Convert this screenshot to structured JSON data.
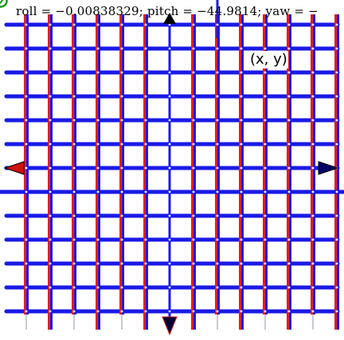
{
  "readout": {
    "text": "roll = −0.00838329; pitch = −44.9814; yaw = −"
  },
  "point_label": {
    "text": "(x, y)"
  },
  "colors": {
    "horizontal_lines": "#1a1ae6",
    "vertical_line_left": "#e02020",
    "vertical_line_right": "#1a1ae6",
    "axis": "#0000cc",
    "arrow_left": "#d01010",
    "arrow_right": "#000066",
    "arrow_dark": "#000000",
    "corner_icon": "#1a9a1a",
    "background": "#ffffff"
  },
  "icons": {
    "corner": "check-circle-icon",
    "axis_arrows": "triangle-arrow-icon"
  }
}
